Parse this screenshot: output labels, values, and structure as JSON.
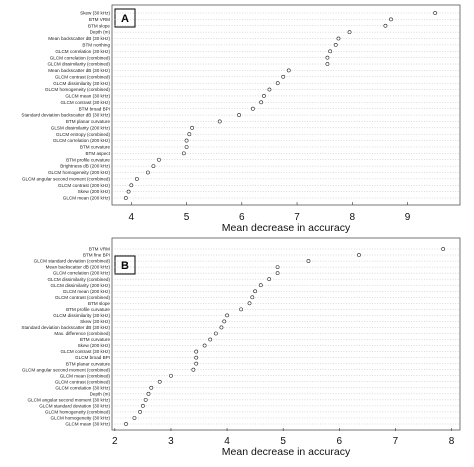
{
  "chart_data": [
    {
      "type": "scatter",
      "panel_label": "A",
      "xlabel": "Mean decrease in accuracy",
      "xlim": [
        3.65,
        9.95
      ],
      "xticks": [
        4,
        5,
        6,
        7,
        8,
        9
      ],
      "grid": "horizontal dotted",
      "categories": [
        "Skew (30 kHz)",
        "BTM VRM",
        "BTM slope",
        "Depth (m)",
        "Mean backscatter dB (30 kHz)",
        "BTM northing",
        "GLCM correlation (30 kHz)",
        "GLCM correlation (combined)",
        "GLCM dissimilarity (combined)",
        "Mean backscatter dB (30 kHz)",
        "GLCM contrast (combined)",
        "GLCM dissimilarity (30 kHz)",
        "GLCM homogeneity (combined)",
        "GLCM mean (30 kHz)",
        "GLCM contrast (30 kHz)",
        "BTM broad BPI",
        "Standard deviation backscatter dB (30 kHz)",
        "BTM planar curvature",
        "GLSM dissimilarity (200 kHz)",
        "GLCM entropy (combined)",
        "GLCM correlation (200 kHz)",
        "BTM curvature",
        "BTM aspect",
        "BTM profile curvature",
        "Brightness dB (200 kHz)",
        "GLCM homogeneity (200 kHz)",
        "GLCM angular second moment (combined)",
        "GLCM contrast (200 kHz)",
        "Skew (200 kHz)",
        "GLCM mean (200 kHz)"
      ],
      "values": [
        9.5,
        8.7,
        8.6,
        7.95,
        7.75,
        7.7,
        7.6,
        7.55,
        7.55,
        6.85,
        6.75,
        6.65,
        6.5,
        6.4,
        6.35,
        6.2,
        5.95,
        5.6,
        5.1,
        5.05,
        5.0,
        5.0,
        4.95,
        4.5,
        4.4,
        4.3,
        4.1,
        4.0,
        3.95,
        3.9
      ]
    },
    {
      "type": "scatter",
      "panel_label": "B",
      "xlabel": "Mean decrease in accuracy",
      "xlim": [
        1.95,
        8.15
      ],
      "xticks": [
        2,
        3,
        4,
        5,
        6,
        7,
        8
      ],
      "grid": "horizontal dotted",
      "categories": [
        "BTM VRM",
        "BTM fine BPI",
        "GLCM standard deviation (combined)",
        "Mean backscatter dB (200 kHz)",
        "GLCM correlation (200 kHz)",
        "GLCM dissimilarity (combined)",
        "GLCM dissimilarity (200 kHz)",
        "GLCM mean (200 kHz)",
        "GLCM contrast (combined)",
        "BTM slope",
        "BTM profile curvature",
        "GLCM dissimilarity (30 kHz)",
        "Skew (30 kHz)",
        "Standard deviation backscatter dB (30 kHz)",
        "Max. difference (combined)",
        "BTM curvature",
        "Skew (200 kHz)",
        "GLCM contrast (30 kHz)",
        "GLCM broad BPI",
        "BTM planar curvature",
        "GLCM angular second moment (combined)",
        "GLCM mean (combined)",
        "GLCM contrast (combined)",
        "GLCM correlation (30 kHz)",
        "Depth (m)",
        "GLCM angular second moment (30 kHz)",
        "GLCM standard deviation (30 kHz)",
        "GLCM homogeneity (combined)",
        "GLCM homogeneity (30 kHz)",
        "GLCM mean (30 kHz)"
      ],
      "values": [
        7.85,
        6.35,
        5.45,
        4.9,
        4.9,
        4.75,
        4.6,
        4.5,
        4.45,
        4.4,
        4.25,
        4.0,
        3.95,
        3.9,
        3.8,
        3.7,
        3.6,
        3.45,
        3.45,
        3.45,
        3.4,
        3.0,
        2.8,
        2.65,
        2.6,
        2.55,
        2.5,
        2.45,
        2.35,
        2.2
      ]
    }
  ]
}
